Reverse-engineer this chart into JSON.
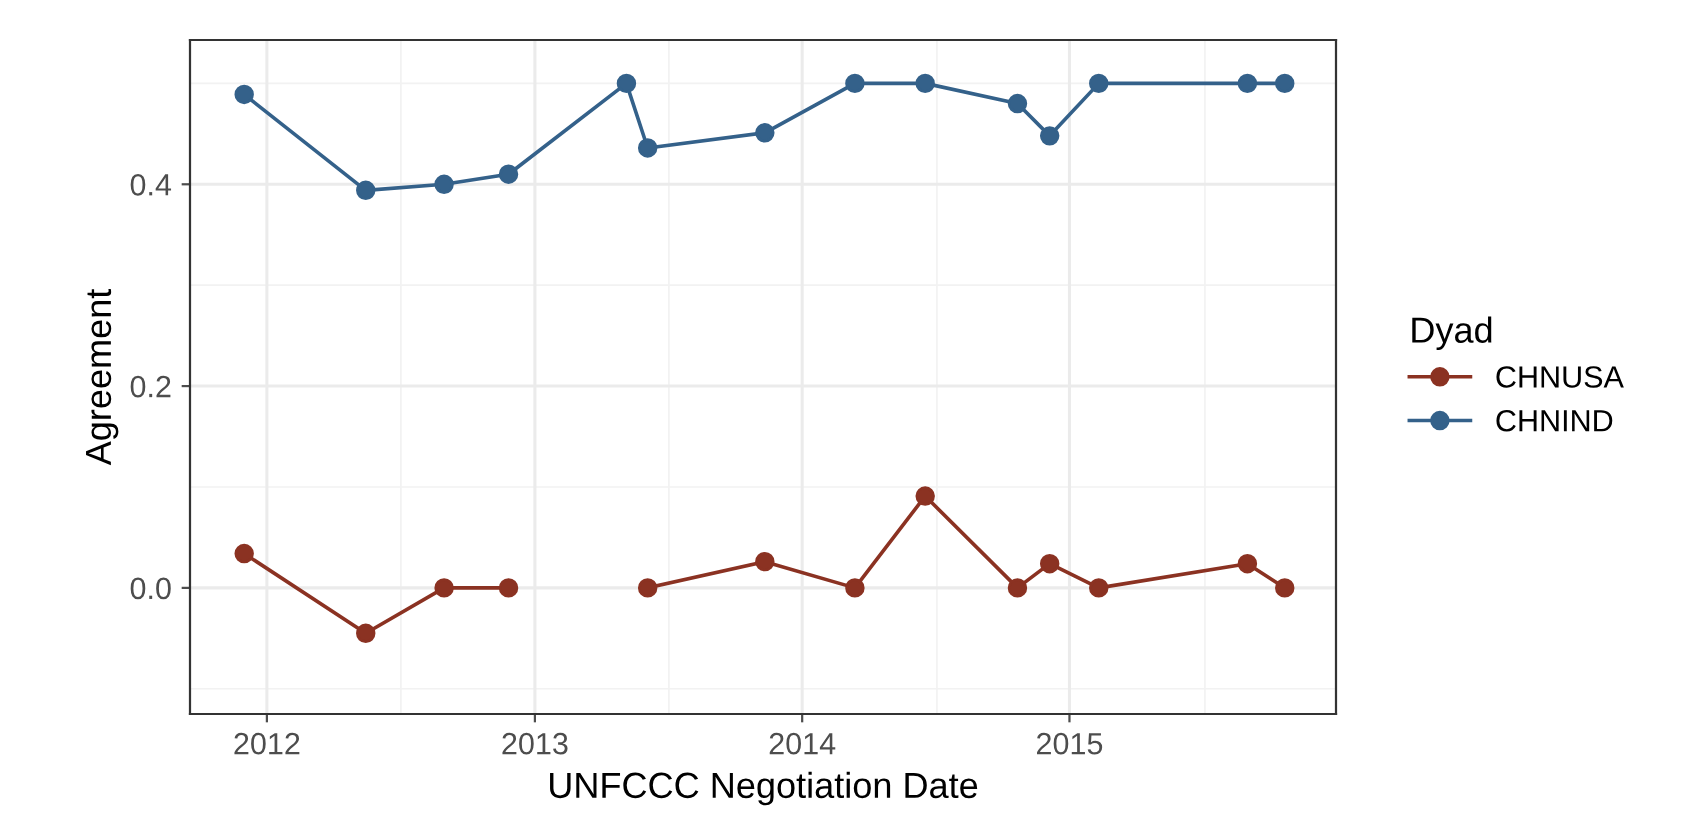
{
  "chart_data": {
    "type": "line",
    "xlabel": "UNFCCC Negotiation Date",
    "ylabel": "Agreement",
    "legend_title": "Dyad",
    "x": [
      "2011-12-01",
      "2012-05-15",
      "2012-08-30",
      "2012-11-26",
      "2013-05-06",
      "2013-06-04",
      "2013-11-11",
      "2014-03-14",
      "2014-06-18",
      "2014-10-22",
      "2014-12-05",
      "2015-02-10",
      "2015-09-01",
      "2015-10-22"
    ],
    "series": [
      {
        "name": "CHNUSA",
        "color": "#8b3222",
        "values": [
          0.034,
          -0.045,
          0,
          0,
          null,
          0,
          0.026,
          0,
          0.091,
          0,
          0.024,
          0,
          0.024,
          0
        ]
      },
      {
        "name": "CHNIND",
        "color": "#34618a",
        "values": [
          0.489,
          0.394,
          0.4,
          0.41,
          0.5,
          0.436,
          0.451,
          0.5,
          0.5,
          0.48,
          0.448,
          0.5,
          0.5,
          0.5
        ]
      }
    ],
    "xlim": [
      "2011-09-18",
      "2015-12-31"
    ],
    "xticks": [
      {
        "value": "2012-01-01",
        "label": "2012"
      },
      {
        "value": "2013-01-01",
        "label": "2013"
      },
      {
        "value": "2014-01-01",
        "label": "2014"
      },
      {
        "value": "2015-01-01",
        "label": "2015"
      }
    ],
    "ylim": [
      -0.125,
      0.543
    ],
    "yticks": [
      {
        "value": 0,
        "label": "0.0"
      },
      {
        "value": 0.2,
        "label": "0.2"
      },
      {
        "value": 0.4,
        "label": "0.4"
      }
    ],
    "grid": true,
    "legend": "right",
    "marker": "circle",
    "line_style": "solid"
  }
}
